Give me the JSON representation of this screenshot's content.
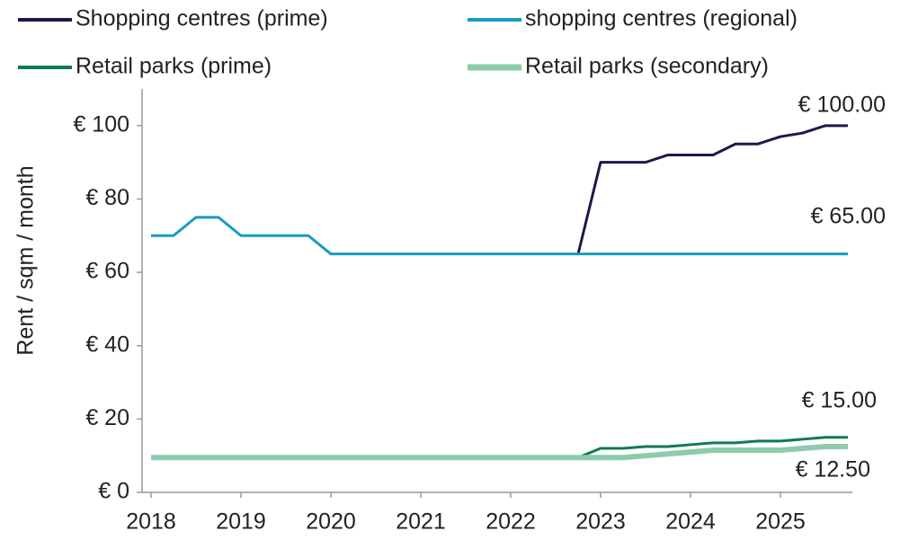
{
  "chart_data": {
    "type": "line",
    "y_label": "Rent / sqm / month",
    "x": [
      2018,
      2018.25,
      2018.5,
      2018.75,
      2019,
      2019.25,
      2019.5,
      2019.75,
      2020,
      2020.25,
      2020.5,
      2020.75,
      2021,
      2021.25,
      2021.5,
      2021.75,
      2022,
      2022.25,
      2022.5,
      2022.75,
      2023,
      2023.25,
      2023.5,
      2023.75,
      2024,
      2024.25,
      2024.5,
      2024.75,
      2025,
      2025.25,
      2025.5,
      2025.75
    ],
    "series": [
      {
        "name": "Shopping centres (prime)",
        "color": "#1c1a4a",
        "width": 3,
        "values": [
          null,
          null,
          null,
          null,
          null,
          null,
          null,
          null,
          null,
          null,
          null,
          null,
          null,
          null,
          null,
          null,
          null,
          null,
          null,
          65,
          90,
          90,
          90,
          92,
          92,
          92,
          95,
          95,
          97,
          98,
          100,
          100
        ]
      },
      {
        "name": "shopping centres (regional)",
        "color": "#1a9bbf",
        "width": 3,
        "values": [
          70,
          70,
          75,
          75,
          70,
          70,
          70,
          70,
          65,
          65,
          65,
          65,
          65,
          65,
          65,
          65,
          65,
          65,
          65,
          65,
          65,
          65,
          65,
          65,
          65,
          65,
          65,
          65,
          65,
          65,
          65,
          65
        ]
      },
      {
        "name": "Retail parks (prime)",
        "color": "#0d7a55",
        "width": 3,
        "values": [
          9.5,
          9.5,
          9.5,
          9.5,
          9.5,
          9.5,
          9.5,
          9.5,
          9.5,
          9.5,
          9.5,
          9.5,
          9.5,
          9.5,
          9.5,
          9.5,
          9.5,
          9.5,
          9.5,
          9.5,
          12,
          12,
          12.5,
          12.5,
          13,
          13.5,
          13.5,
          14,
          14,
          14.5,
          15,
          15
        ]
      },
      {
        "name": "Retail parks (secondary)",
        "color": "#8ccbab",
        "width": 6,
        "values": [
          9.5,
          9.5,
          9.5,
          9.5,
          9.5,
          9.5,
          9.5,
          9.5,
          9.5,
          9.5,
          9.5,
          9.5,
          9.5,
          9.5,
          9.5,
          9.5,
          9.5,
          9.5,
          9.5,
          9.5,
          9.5,
          9.5,
          10,
          10.5,
          11,
          11.5,
          11.5,
          11.5,
          11.5,
          12,
          12.5,
          12.5
        ]
      }
    ],
    "annotations": [
      "€ 100.00",
      "€ 65.00",
      "€ 15.00",
      "€ 12.50"
    ],
    "xlim": [
      2017.9,
      2025.8
    ],
    "xticks": [
      2018,
      2019,
      2020,
      2021,
      2022,
      2023,
      2024,
      2025
    ],
    "ylim": [
      0,
      110
    ],
    "yticks": [
      {
        "value": 0,
        "label": "€ 0"
      },
      {
        "value": 20,
        "label": "€ 20"
      },
      {
        "value": 40,
        "label": "€ 40"
      },
      {
        "value": 60,
        "label": "€ 60"
      },
      {
        "value": 80,
        "label": "€ 80"
      },
      {
        "value": 100,
        "label": "€ 100"
      }
    ],
    "grid": false
  }
}
